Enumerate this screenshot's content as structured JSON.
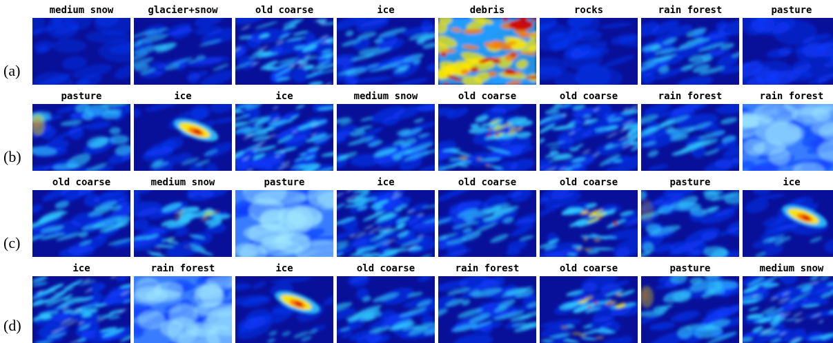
{
  "rows": [
    {
      "label": "(a)",
      "cells": [
        {
          "title": "medium snow",
          "intensity": 0.1,
          "texture": "smooth",
          "hot": 0.0
        },
        {
          "title": "glacier+snow",
          "intensity": 0.25,
          "texture": "streak",
          "hot": 0.0
        },
        {
          "title": "old coarse",
          "intensity": 0.45,
          "texture": "stripes",
          "hot": 0.0
        },
        {
          "title": "ice",
          "intensity": 0.4,
          "texture": "streak",
          "hot": 0.0
        },
        {
          "title": "debris",
          "intensity": 0.8,
          "texture": "hot",
          "hot": 0.9
        },
        {
          "title": "rocks",
          "intensity": 0.15,
          "texture": "smooth",
          "hot": 0.0
        },
        {
          "title": "rain forest",
          "intensity": 0.45,
          "texture": "streak",
          "hot": 0.0
        },
        {
          "title": "pasture",
          "intensity": 0.3,
          "texture": "smooth",
          "hot": 0.0
        }
      ]
    },
    {
      "label": "(b)",
      "cells": [
        {
          "title": "pasture",
          "intensity": 0.45,
          "texture": "blob",
          "hot": 0.4
        },
        {
          "title": "ice",
          "intensity": 0.2,
          "texture": "core",
          "hot": 0.9
        },
        {
          "title": "ice",
          "intensity": 0.55,
          "texture": "stripes",
          "hot": 0.0
        },
        {
          "title": "medium snow",
          "intensity": 0.45,
          "texture": "streak",
          "hot": 0.1
        },
        {
          "title": "old coarse",
          "intensity": 0.4,
          "texture": "branch",
          "hot": 0.6
        },
        {
          "title": "old coarse",
          "intensity": 0.45,
          "texture": "stripes",
          "hot": 0.0
        },
        {
          "title": "rain forest",
          "intensity": 0.4,
          "texture": "streak",
          "hot": 0.1
        },
        {
          "title": "rain forest",
          "intensity": 0.55,
          "texture": "smooth",
          "hot": 0.0
        }
      ]
    },
    {
      "label": "(c)",
      "cells": [
        {
          "title": "old coarse",
          "intensity": 0.45,
          "texture": "streak",
          "hot": 0.0
        },
        {
          "title": "medium snow",
          "intensity": 0.4,
          "texture": "branch",
          "hot": 0.2
        },
        {
          "title": "pasture",
          "intensity": 0.65,
          "texture": "smooth",
          "hot": 0.0
        },
        {
          "title": "ice",
          "intensity": 0.5,
          "texture": "stripes",
          "hot": 0.0
        },
        {
          "title": "old coarse",
          "intensity": 0.4,
          "texture": "streak",
          "hot": 0.0
        },
        {
          "title": "old coarse",
          "intensity": 0.3,
          "texture": "branch",
          "hot": 0.7
        },
        {
          "title": "pasture",
          "intensity": 0.45,
          "texture": "blob",
          "hot": 0.1
        },
        {
          "title": "ice",
          "intensity": 0.2,
          "texture": "core",
          "hot": 0.9
        }
      ]
    },
    {
      "label": "(d)",
      "cells": [
        {
          "title": "ice",
          "intensity": 0.55,
          "texture": "stripes",
          "hot": 0.0
        },
        {
          "title": "rain forest",
          "intensity": 0.6,
          "texture": "smooth",
          "hot": 0.0
        },
        {
          "title": "ice",
          "intensity": 0.2,
          "texture": "core",
          "hot": 0.9
        },
        {
          "title": "old coarse",
          "intensity": 0.45,
          "texture": "streak",
          "hot": 0.0
        },
        {
          "title": "rain forest",
          "intensity": 0.45,
          "texture": "streak",
          "hot": 0.1
        },
        {
          "title": "old coarse",
          "intensity": 0.3,
          "texture": "branch",
          "hot": 0.6
        },
        {
          "title": "pasture",
          "intensity": 0.45,
          "texture": "blob",
          "hot": 0.3
        },
        {
          "title": "medium snow",
          "intensity": 0.5,
          "texture": "stripes",
          "hot": 0.0
        }
      ]
    }
  ],
  "colors": {
    "deep": "#08109a",
    "blue": "#0a3cff",
    "cyan": "#2ec8ff",
    "pale": "#9fe8ff",
    "yellow": "#ffe800",
    "orange": "#ff7a00",
    "red": "#d00000"
  }
}
